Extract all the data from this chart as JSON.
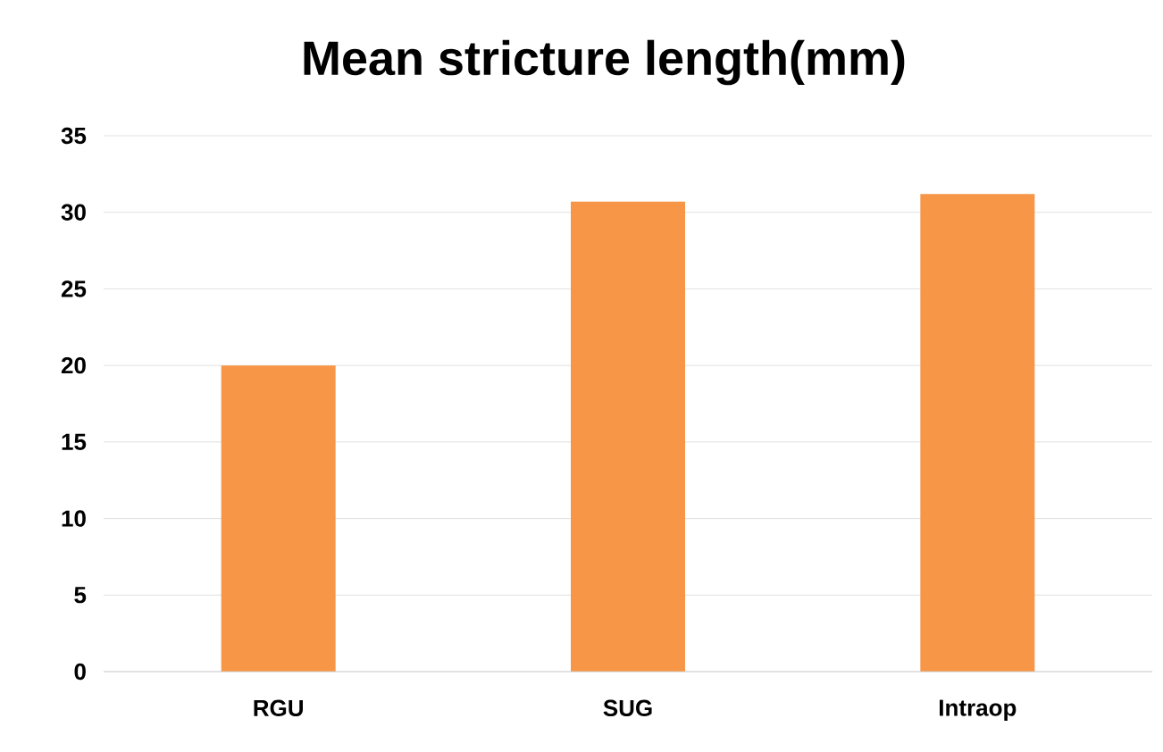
{
  "chart_data": {
    "type": "bar",
    "title": "Mean stricture length(mm)",
    "categories": [
      "RGU",
      "SUG",
      "Intraop"
    ],
    "values": [
      20,
      30.7,
      31.2
    ],
    "color": "#f79646",
    "ylim": [
      0,
      35
    ],
    "yticks": [
      0,
      5,
      10,
      15,
      20,
      25,
      30,
      35
    ],
    "grid": "y"
  }
}
